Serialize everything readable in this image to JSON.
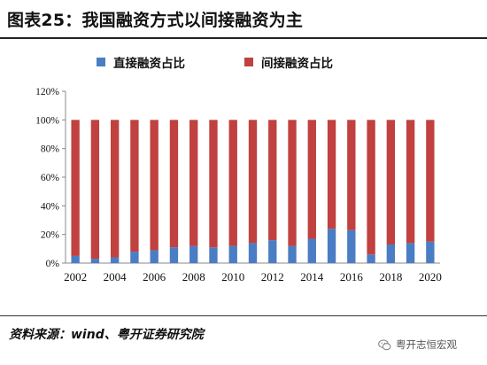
{
  "header": {
    "title": "图表25：我国融资方式以间接融资为主"
  },
  "source": {
    "text": "资料来源：wind、粤开证券研究院"
  },
  "watermark": {
    "text": "粤开志恒宏观",
    "icon": "wechat-icon"
  },
  "colors": {
    "direct": "#4a7dc4",
    "indirect": "#c0413f",
    "axis": "#888888",
    "text": "#111111"
  },
  "chart_data": {
    "type": "bar",
    "stacked": true,
    "title": "",
    "xlabel": "",
    "ylabel": "",
    "ylim": [
      0,
      120
    ],
    "y_ticks": [
      "0%",
      "20%",
      "40%",
      "60%",
      "80%",
      "100%",
      "120%"
    ],
    "x_tick_labels": [
      "2002",
      "2004",
      "2006",
      "2008",
      "2010",
      "2012",
      "2014",
      "2016",
      "2018",
      "2020"
    ],
    "legend_position": "top",
    "grid": false,
    "categories": [
      "2002",
      "2003",
      "2004",
      "2005",
      "2006",
      "2007",
      "2008",
      "2009",
      "2010",
      "2011",
      "2012",
      "2013",
      "2014",
      "2015",
      "2016",
      "2017",
      "2018",
      "2019",
      "2020"
    ],
    "series": [
      {
        "name": "直接融资占比",
        "color": "#4a7dc4",
        "values": [
          5,
          3,
          4,
          8,
          9,
          11,
          12,
          11,
          12,
          14,
          16,
          12,
          17,
          24,
          23,
          6,
          13,
          14,
          15
        ]
      },
      {
        "name": "间接融资占比",
        "color": "#c0413f",
        "values": [
          95,
          97,
          96,
          92,
          91,
          89,
          88,
          89,
          88,
          86,
          84,
          88,
          83,
          76,
          77,
          94,
          87,
          86,
          85
        ]
      }
    ]
  }
}
